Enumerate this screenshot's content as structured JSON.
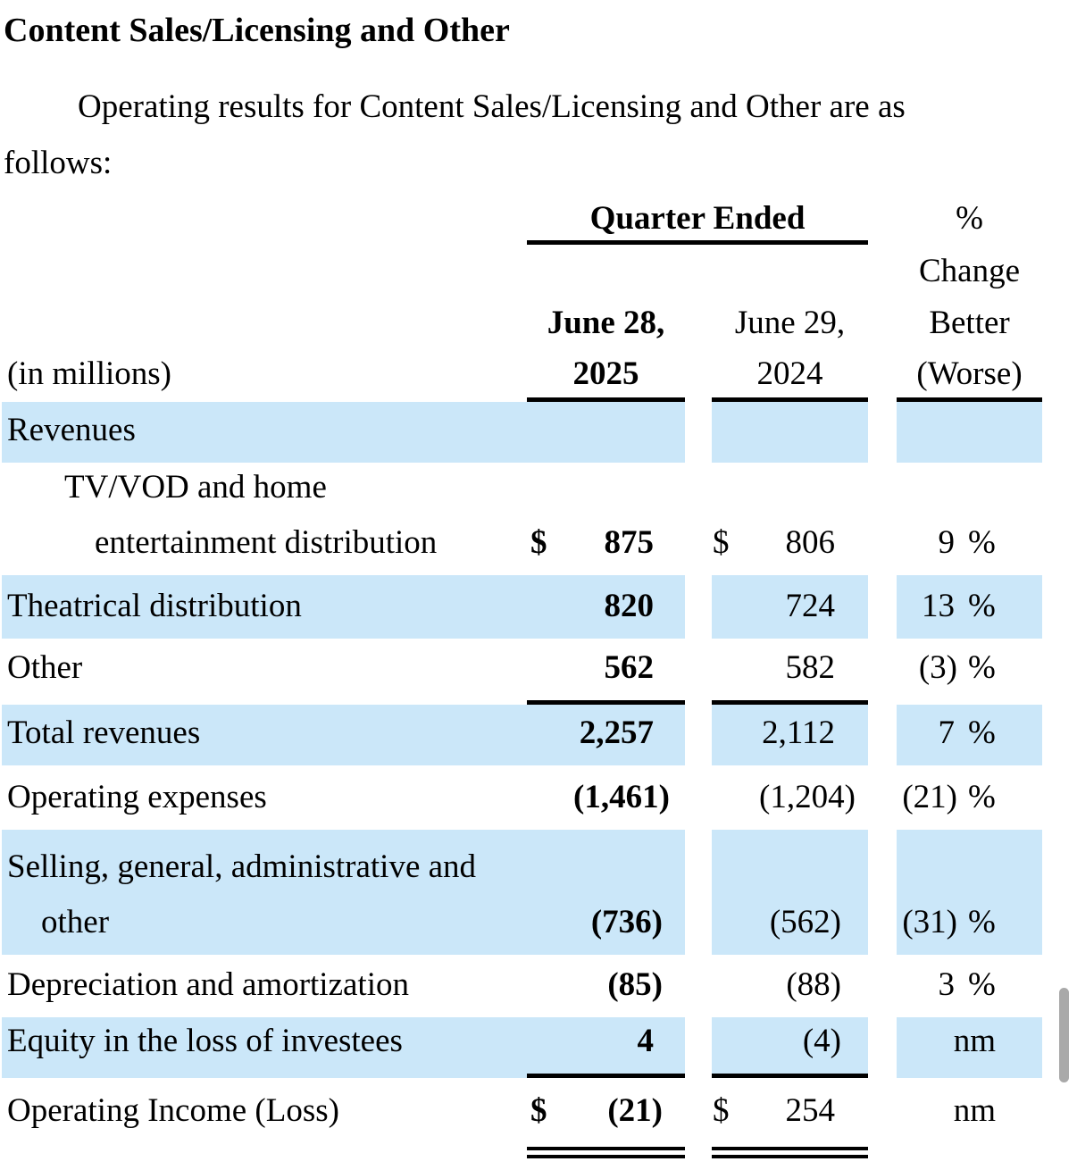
{
  "heading": "Content Sales/Licensing and Other",
  "intro": {
    "line1": "Operating results for Content Sales/Licensing and Other are as",
    "line2": "follows:"
  },
  "table": {
    "quarter_ended_label": "Quarter Ended",
    "pct_change_header": {
      "line1": "%",
      "line2": "Change",
      "line3": "Better",
      "line4": "(Worse)"
    },
    "period_2025": {
      "line1": "June 28,",
      "line2": "2025"
    },
    "period_2024": {
      "line1": "June 29,",
      "line2": "2024"
    },
    "units_label": "(in millions)",
    "rows": {
      "revenues_header": {
        "label": "Revenues"
      },
      "tv_vod": {
        "label_line1": "TV/VOD and home",
        "label_line2": "entertainment distribution",
        "dollar_2025": "$",
        "val_2025": "875",
        "dollar_2024": "$",
        "val_2024": "806",
        "pct": "9",
        "pct_sign": "%"
      },
      "theatrical": {
        "label": "Theatrical distribution",
        "val_2025": "820",
        "val_2024": "724",
        "pct": "13",
        "pct_sign": "%"
      },
      "other": {
        "label": "Other",
        "val_2025": "562",
        "val_2024": "582",
        "pct": "(3)",
        "pct_sign": "%"
      },
      "total_revenues": {
        "label": "Total revenues",
        "val_2025": "2,257",
        "val_2024": "2,112",
        "pct": "7",
        "pct_sign": "%"
      },
      "operating_expenses": {
        "label": "Operating expenses",
        "val_2025": "(1,461)",
        "val_2024": "(1,204)",
        "pct": "(21)",
        "pct_sign": "%"
      },
      "sga": {
        "label_line1": "Selling, general, administrative and",
        "label_line2": "other",
        "val_2025": "(736)",
        "val_2024": "(562)",
        "pct": "(31)",
        "pct_sign": "%"
      },
      "depreciation": {
        "label": "Depreciation and amortization",
        "val_2025": "(85)",
        "val_2024": "(88)",
        "pct": "3",
        "pct_sign": "%"
      },
      "equity": {
        "label": "Equity in the loss of investees",
        "val_2025": "4",
        "val_2024": "(4)",
        "pct": "nm"
      },
      "operating_income": {
        "label": "Operating Income (Loss)",
        "dollar_2025": "$",
        "val_2025": "(21)",
        "dollar_2024": "$",
        "val_2024": "254",
        "pct": "nm"
      }
    }
  },
  "colors": {
    "row_band": "#cbe7f9",
    "text": "#000000",
    "background": "#ffffff",
    "scrollbar_thumb": "#a9a9a9"
  }
}
